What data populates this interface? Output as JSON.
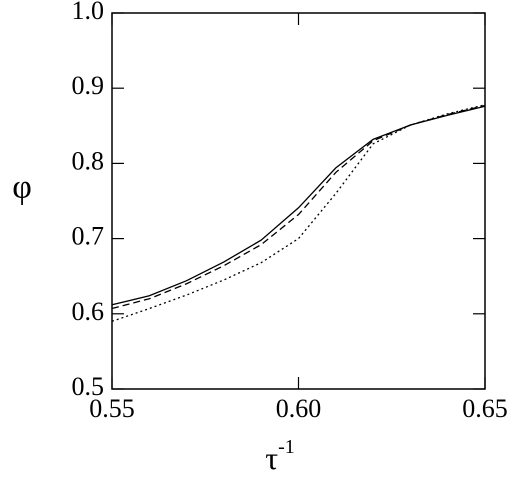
{
  "chart_data": {
    "type": "line",
    "x_label": "τ",
    "x_label_sup": "-1",
    "y_label": "φ",
    "x": [
      0.55,
      0.56,
      0.57,
      0.58,
      0.59,
      0.6,
      0.61,
      0.62,
      0.63,
      0.64,
      0.65
    ],
    "series": [
      {
        "color": "#000000",
        "dash": "none",
        "values": [
          0.612,
          0.624,
          0.644,
          0.669,
          0.698,
          0.741,
          0.794,
          0.832,
          0.851,
          0.864,
          0.876
        ]
      },
      {
        "color": "#000000",
        "dash": "7 4",
        "values": [
          0.607,
          0.62,
          0.64,
          0.664,
          0.692,
          0.732,
          0.788,
          0.83,
          0.851,
          0.865,
          0.877
        ]
      },
      {
        "color": "#000000",
        "dash": "2 3",
        "values": [
          0.59,
          0.607,
          0.625,
          0.645,
          0.668,
          0.7,
          0.76,
          0.826,
          0.851,
          0.866,
          0.878
        ]
      }
    ],
    "xlim": [
      0.55,
      0.65
    ],
    "xticks": [
      0.55,
      {
        "value": 0.6,
        "label": "0.60"
      },
      0.65
    ],
    "ylim": [
      0.5,
      1.0
    ],
    "yticks": [
      0.5,
      0.6,
      0.7,
      0.8,
      0.9,
      {
        "value": 1.0,
        "label": "1.0"
      }
    ]
  }
}
